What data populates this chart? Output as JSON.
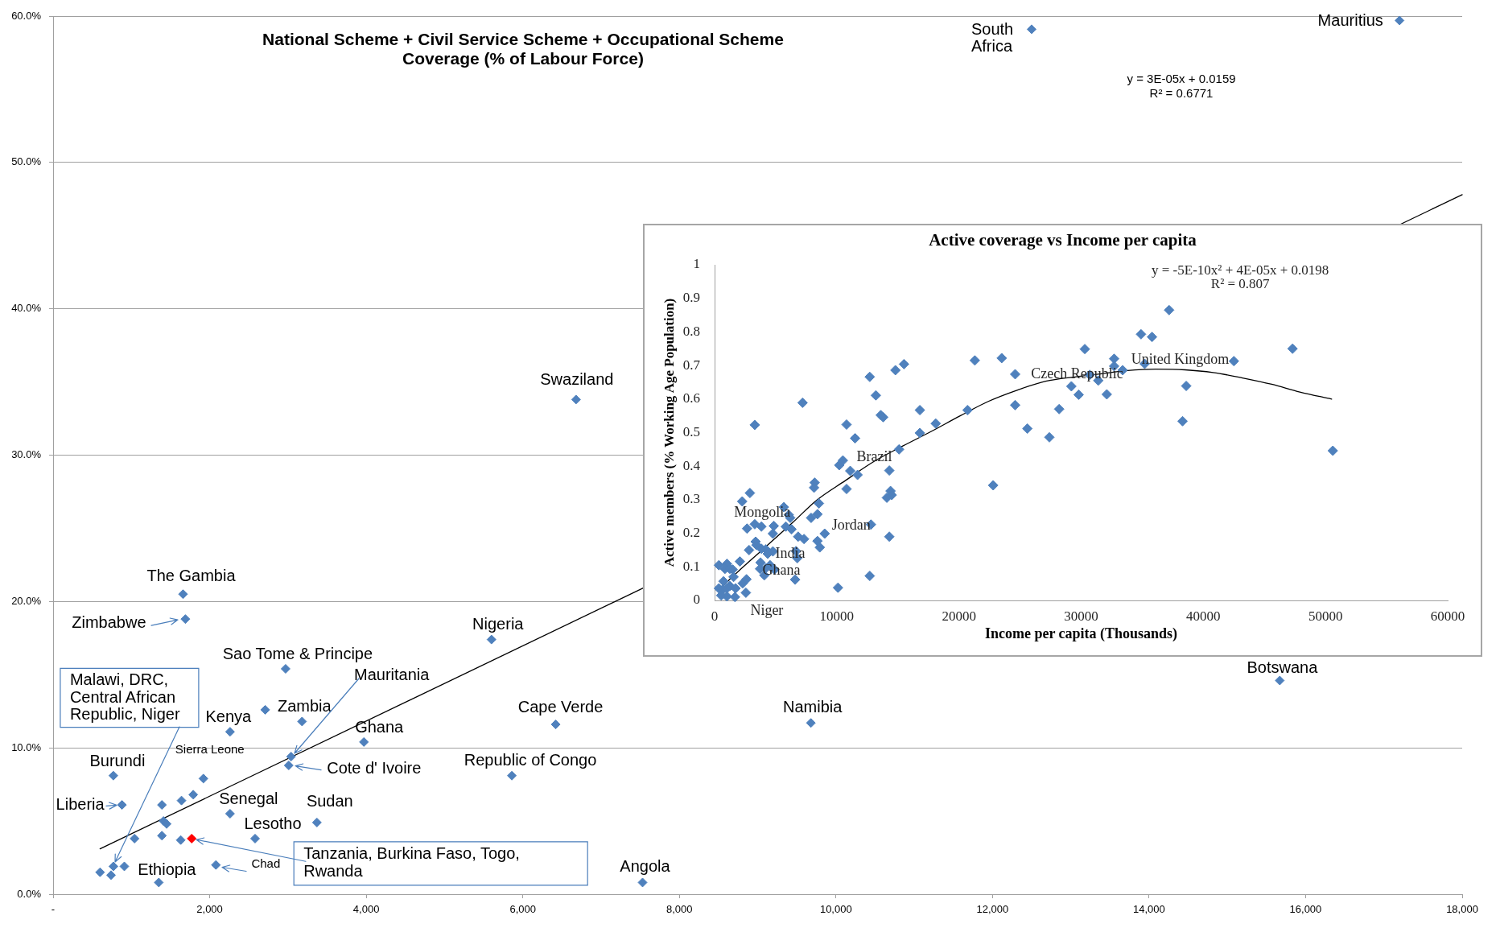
{
  "chart_data": [
    {
      "type": "scatter",
      "title": "National Scheme + Civil Service Scheme + Occupational Scheme Coverage (% of Labour Force)",
      "series": [
        {
          "color": "#4f81bd",
          "x": [
            1660,
            1690,
            2970,
            2260,
            2710,
            3180,
            5600,
            6420,
            3970,
            3040,
            3010,
            5860,
            770,
            1920,
            1790,
            1640,
            1390,
            880,
            2260,
            3370,
            1410,
            1450,
            1390,
            1040,
            1630,
            2580,
            2080,
            770,
            910,
            600,
            740,
            1350,
            6680,
            12500,
            17200,
            15670,
            9680,
            7530
          ],
          "values": [
            20.5,
            18.8,
            15.4,
            11.1,
            12.6,
            11.8,
            17.4,
            11.6,
            10.4,
            9.4,
            8.8,
            8.1,
            8.1,
            7.9,
            6.8,
            6.4,
            6.1,
            6.1,
            5.5,
            4.9,
            5.0,
            4.8,
            4.0,
            3.8,
            3.7,
            3.8,
            2.0,
            1.9,
            1.9,
            1.5,
            1.3,
            0.8,
            33.8,
            59.1,
            59.7,
            14.6,
            11.7,
            0.8
          ]
        },
        {
          "color": "#ff0000",
          "x": [
            1770
          ],
          "values": [
            3.8
          ]
        },
        {
          "type": "line",
          "color": "#000000",
          "marker": "none",
          "x": [
            600,
            18000
          ],
          "values": [
            3.1,
            47.8
          ]
        }
      ],
      "xlim": [
        0,
        18000
      ],
      "xticks": [
        {
          "value": 0,
          "label": "-"
        },
        {
          "value": 2000,
          "label": "2,000"
        },
        {
          "value": 4000,
          "label": "4,000"
        },
        {
          "value": 6000,
          "label": "6,000"
        },
        {
          "value": 8000,
          "label": "8,000"
        },
        {
          "value": 10000,
          "label": "10,000"
        },
        {
          "value": 12000,
          "label": "12,000"
        },
        {
          "value": 14000,
          "label": "14,000"
        },
        {
          "value": 16000,
          "label": "16,000"
        },
        {
          "value": 18000,
          "label": "18,000"
        }
      ],
      "ylim": [
        0,
        60
      ],
      "yticks": [
        {
          "value": 0,
          "label": "0.0%"
        },
        {
          "value": 10,
          "label": "10.0%"
        },
        {
          "value": 20,
          "label": "20.0%"
        },
        {
          "value": 30,
          "label": "30.0%"
        },
        {
          "value": 40,
          "label": "40.0%"
        },
        {
          "value": 50,
          "label": "50.0%"
        },
        {
          "value": 60,
          "label": "60.0%"
        }
      ],
      "grid": "y",
      "marker": "diamond",
      "annotations": [
        {
          "text": "The Gambia",
          "x": 1660,
          "y": 20.5
        },
        {
          "text": "Zimbabwe",
          "x": 1690,
          "y": 18.8
        },
        {
          "text": "Sao Tome & Principe",
          "x": 2970,
          "y": 15.4
        },
        {
          "text": "Kenya",
          "x": 2260,
          "y": 11.1
        },
        {
          "text": "Zambia",
          "x": 3180,
          "y": 11.8
        },
        {
          "text": "Mauritania",
          "x": 3040,
          "y": 9.4
        },
        {
          "text": "Nigeria",
          "x": 5600,
          "y": 17.4
        },
        {
          "text": "Cape Verde",
          "x": 6420,
          "y": 11.6
        },
        {
          "text": "Ghana",
          "x": 3970,
          "y": 10.4
        },
        {
          "text": "Sierra Leone",
          "x": 1920,
          "y": 7.9
        },
        {
          "text": "Cote d' Ivoire",
          "x": 3010,
          "y": 8.8
        },
        {
          "text": "Republic of Congo",
          "x": 5860,
          "y": 8.1
        },
        {
          "text": "Burundi",
          "x": 770,
          "y": 8.1
        },
        {
          "text": "Liberia",
          "x": 880,
          "y": 6.1
        },
        {
          "text": "Senegal",
          "x": 2260,
          "y": 5.5
        },
        {
          "text": "Sudan",
          "x": 3370,
          "y": 4.9
        },
        {
          "text": "Lesotho",
          "x": 2580,
          "y": 3.8
        },
        {
          "text": "Chad",
          "x": 2080,
          "y": 2.0
        },
        {
          "text": "Ethiopia",
          "x": 1350,
          "y": 0.8
        },
        {
          "text": "Malawi, DRC, Central African Republic, Niger",
          "x": 770,
          "y": 1.9
        },
        {
          "text": "Tanzania, Burkina Faso, Togo, Rwanda",
          "x": 1770,
          "y": 3.8
        },
        {
          "text": "Swaziland",
          "x": 6680,
          "y": 33.8
        },
        {
          "text": "South Africa",
          "x": 12500,
          "y": 59.1
        },
        {
          "text": "Mauritius",
          "x": 17200,
          "y": 59.7
        },
        {
          "text": "Botswana",
          "x": 15670,
          "y": 14.6
        },
        {
          "text": "Namibia",
          "x": 9680,
          "y": 11.7
        },
        {
          "text": "Angola",
          "x": 7530,
          "y": 0.8
        },
        "y = 3E-05x + 0.0159",
        "R² = 0.6771"
      ]
    },
    {
      "type": "scatter",
      "title": "Active coverage vs Income per capita",
      "xlabel": "Income per capita (Thousands)",
      "ylabel": "Active members (% Working Age Population)",
      "series": [
        {
          "color": "#4f81bd",
          "x": [
            350,
            1010,
            850,
            1250,
            1480,
            1550,
            730,
            350,
            660,
            1010,
            1250,
            540,
            1010,
            1670,
            1720,
            2070,
            2300,
            2610,
            2560,
            2260,
            2890,
            3290,
            2660,
            3290,
            3830,
            2820,
            3360,
            3430,
            3830,
            4190,
            4350,
            4770,
            4850,
            4770,
            3760,
            3720,
            4070,
            4190,
            4540,
            4890,
            5670,
            6070,
            6190,
            5830,
            6300,
            7200,
            6840,
            7320,
            6660,
            6770,
            6590,
            7900,
            8420,
            8190,
            8140,
            8540,
            9010,
            8420,
            8610,
            10100,
            10200,
            10500,
            10800,
            11100,
            10800,
            11500,
            11700,
            12700,
            13200,
            13600,
            13800,
            12700,
            12800,
            14800,
            15500,
            14300,
            14400,
            14500,
            14100,
            14300,
            15100,
            16800,
            16800,
            18100,
            20700,
            21300,
            23500,
            22800,
            24600,
            24600,
            25600,
            27400,
            28200,
            29200,
            29800,
            30300,
            30700,
            31400,
            32100,
            32700,
            32700,
            33400,
            34900,
            35800,
            35200,
            37200,
            38600,
            38300,
            42500,
            47300,
            50600
          ],
          "values": [
            0.105,
            0.109,
            0.094,
            0.094,
            0.092,
            0.07,
            0.057,
            0.036,
            0.032,
            0.036,
            0.043,
            0.015,
            0.012,
            0.01,
            0.036,
            0.116,
            0.051,
            0.063,
            0.023,
            0.295,
            0.32,
            0.523,
            0.214,
            0.227,
            0.22,
            0.15,
            0.175,
            0.165,
            0.154,
            0.152,
            0.139,
            0.146,
            0.222,
            0.199,
            0.113,
            0.094,
            0.075,
            0.096,
            0.105,
            0.092,
            0.278,
            0.255,
            0.246,
            0.22,
            0.212,
            0.589,
            0.19,
            0.183,
            0.147,
            0.126,
            0.062,
            0.246,
            0.257,
            0.351,
            0.336,
            0.289,
            0.199,
            0.177,
            0.158,
            0.038,
            0.403,
            0.417,
            0.332,
            0.386,
            0.524,
            0.483,
            0.374,
            0.666,
            0.611,
            0.552,
            0.546,
            0.073,
            0.226,
            0.686,
            0.704,
            0.387,
            0.326,
            0.314,
            0.306,
            0.19,
            0.45,
            0.567,
            0.499,
            0.527,
            0.567,
            0.715,
            0.722,
            0.343,
            0.674,
            0.582,
            0.512,
            0.486,
            0.57,
            0.638,
            0.613,
            0.749,
            0.672,
            0.655,
            0.614,
            0.72,
            0.698,
            0.686,
            0.793,
            0.785,
            0.705,
            0.865,
            0.639,
            0.534,
            0.713,
            0.75,
            0.446
          ]
        },
        {
          "type": "line",
          "color": "#000000",
          "marker": "none",
          "x": [
            350,
            1950,
            4070,
            6420,
            8300,
            10700,
            13000,
            15400,
            17700,
            20100,
            22400,
            24800,
            27100,
            29500,
            31400,
            33800,
            36100,
            38500,
            40800,
            43200,
            45600,
            47900,
            50500
          ],
          "values": [
            0.032,
            0.087,
            0.156,
            0.233,
            0.297,
            0.357,
            0.413,
            0.46,
            0.503,
            0.55,
            0.593,
            0.627,
            0.653,
            0.666,
            0.674,
            0.685,
            0.689,
            0.687,
            0.679,
            0.663,
            0.644,
            0.621,
            0.6
          ]
        }
      ],
      "xlim": [
        0,
        60000
      ],
      "xticks": [
        0,
        10000,
        20000,
        30000,
        40000,
        50000,
        60000
      ],
      "ylim": [
        0,
        1
      ],
      "yticks": [
        0,
        0.1,
        0.2,
        0.3,
        0.4,
        0.5,
        0.6,
        0.7,
        0.8,
        0.9,
        1
      ],
      "marker": "diamond",
      "annotations": [
        {
          "text": "Mongolia",
          "x": 2260,
          "y": 0.295
        },
        {
          "text": "Brazil",
          "x": 10500,
          "y": 0.417
        },
        {
          "text": "Jordan",
          "x": 9010,
          "y": 0.199
        },
        {
          "text": "Ghana",
          "x": 3760,
          "y": 0.113
        },
        {
          "text": "India",
          "x": 4540,
          "y": 0.105
        },
        {
          "text": "Niger",
          "x": 2560,
          "y": 0.023
        },
        {
          "text": "Czech Republic",
          "x": 24600,
          "y": 0.674
        },
        {
          "text": "United Kingdom",
          "x": 32700,
          "y": 0.72
        },
        "y = -5E-10x² + 4E-05x + 0.0198",
        "R² = 0.807"
      ]
    }
  ]
}
